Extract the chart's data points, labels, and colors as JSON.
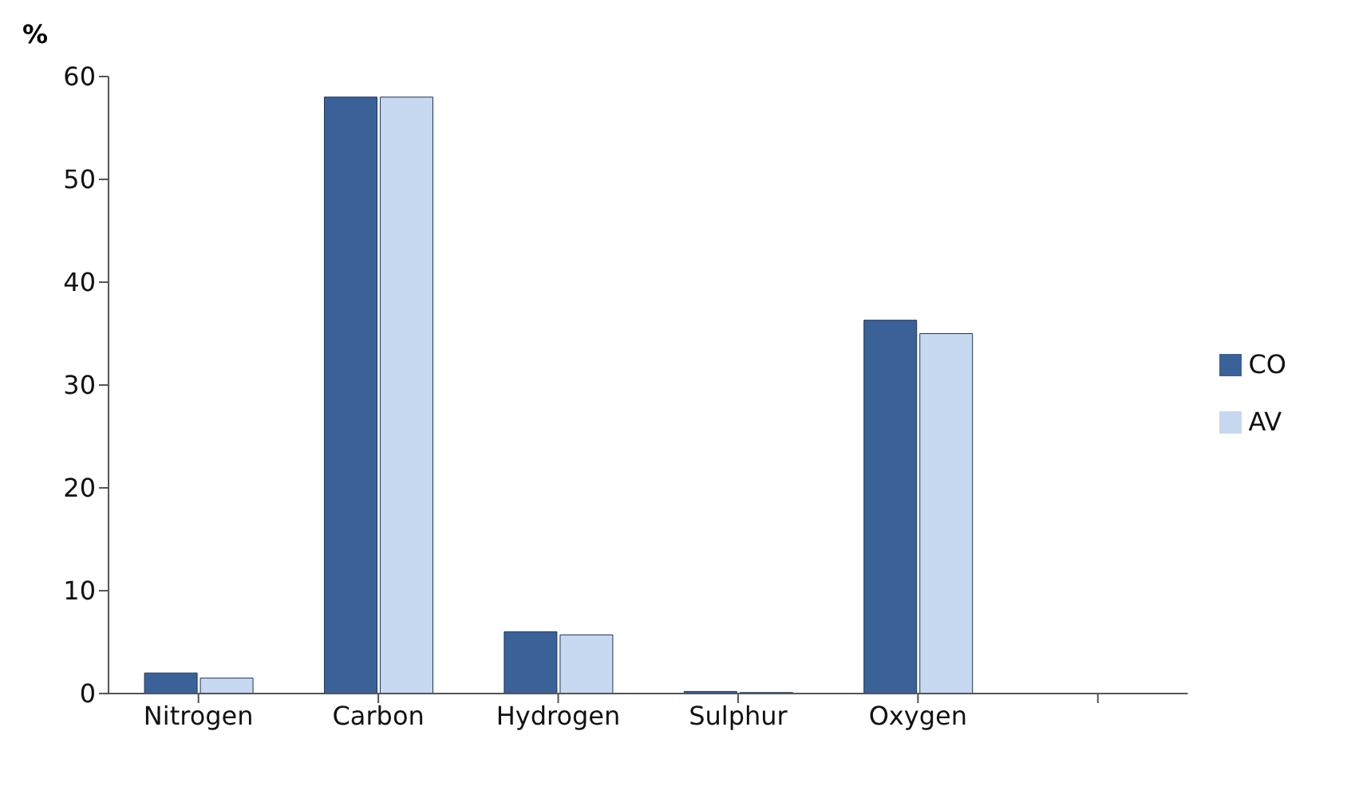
{
  "chart_data": {
    "type": "bar",
    "ylabel": "%",
    "categories": [
      "Nitrogen",
      "Carbon",
      "Hydrogen",
      "Sulphur",
      "Oxygen",
      null
    ],
    "series": [
      {
        "name": "CO",
        "color": "#3a6298",
        "values": [
          2,
          58,
          6,
          0.2,
          36.3,
          null
        ]
      },
      {
        "name": "AV",
        "color": "#c6d9f0",
        "values": [
          1.5,
          58,
          5.7,
          0.1,
          35,
          null
        ]
      }
    ],
    "ylim": [
      0,
      60
    ],
    "yticks": [
      0,
      10,
      20,
      30,
      40,
      50,
      60
    ],
    "grid": false,
    "legend": "right"
  }
}
